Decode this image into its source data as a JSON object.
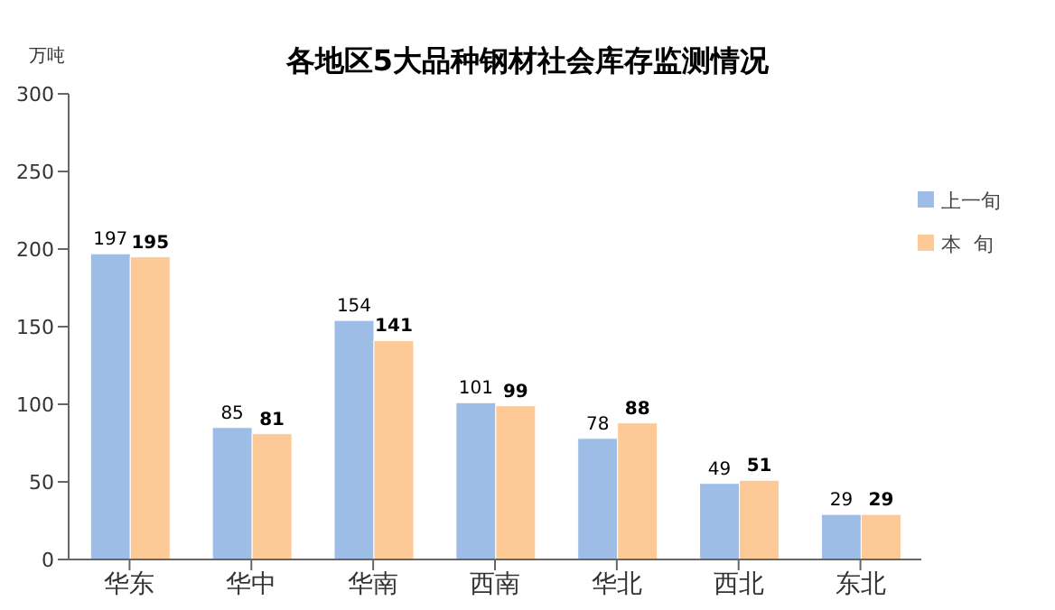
{
  "chart_data": {
    "type": "bar",
    "title": "各地区5大品种钢材社会库存监测情况",
    "ylabel": "万吨",
    "categories": [
      "华东",
      "华中",
      "华南",
      "西南",
      "华北",
      "西北",
      "东北"
    ],
    "series": [
      {
        "name": "上一旬",
        "color": "#9dbde6",
        "values": [
          197,
          85,
          154,
          101,
          78,
          49,
          29
        ]
      },
      {
        "name": "本  旬",
        "color": "#fdc997",
        "values": [
          195,
          81,
          141,
          99,
          88,
          51,
          29
        ]
      }
    ],
    "ylim": [
      0,
      300
    ],
    "yticks": [
      0,
      50,
      100,
      150,
      200,
      250,
      300
    ],
    "grid": false,
    "legend": "right",
    "data_labels": true
  }
}
